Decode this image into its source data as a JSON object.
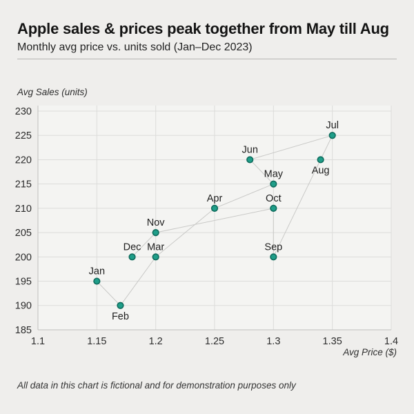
{
  "colors": {
    "page_bg": "#efeeec",
    "plot_bg": "#f4f4f2",
    "grid": "#dcdcda",
    "axis": "#bfbfbd",
    "marker_fill": "#1f9e89",
    "marker_stroke": "#0e6b5c",
    "connector": "#c9c9c7",
    "divider": "#b4b4b2",
    "title_text": "#141414",
    "body_text": "#2b2b2b"
  },
  "chart_data": {
    "type": "scatter",
    "title": "Apple sales & prices peak together from May till Aug",
    "subtitle": "Monthly avg price vs. units sold (Jan–Dec 2023)",
    "xlabel": "Avg Price ($)",
    "ylabel": "Avg Sales (units)",
    "footnote": "All data in this chart is fictional and for demonstration purposes only",
    "xlim": [
      1.1,
      1.4
    ],
    "ylim": [
      185,
      230
    ],
    "x_ticks": [
      1.1,
      1.15,
      1.2,
      1.25,
      1.3,
      1.35,
      1.4
    ],
    "y_ticks": [
      185,
      190,
      195,
      200,
      205,
      210,
      215,
      220,
      225,
      230
    ],
    "grid": true,
    "legend": false,
    "connect_points_in_order": true,
    "points": [
      {
        "label": "Jan",
        "x": 1.15,
        "y": 195,
        "label_pos": "above"
      },
      {
        "label": "Feb",
        "x": 1.17,
        "y": 190,
        "label_pos": "below"
      },
      {
        "label": "Mar",
        "x": 1.2,
        "y": 200,
        "label_pos": "above"
      },
      {
        "label": "Apr",
        "x": 1.25,
        "y": 210,
        "label_pos": "above"
      },
      {
        "label": "May",
        "x": 1.3,
        "y": 215,
        "label_pos": "above"
      },
      {
        "label": "Jun",
        "x": 1.28,
        "y": 220,
        "label_pos": "above"
      },
      {
        "label": "Jul",
        "x": 1.35,
        "y": 225,
        "label_pos": "above"
      },
      {
        "label": "Aug",
        "x": 1.34,
        "y": 220,
        "label_pos": "below"
      },
      {
        "label": "Sep",
        "x": 1.3,
        "y": 200,
        "label_pos": "above"
      },
      {
        "label": "Oct",
        "x": 1.3,
        "y": 210,
        "label_pos": "above"
      },
      {
        "label": "Nov",
        "x": 1.2,
        "y": 205,
        "label_pos": "above"
      },
      {
        "label": "Dec",
        "x": 1.18,
        "y": 200,
        "label_pos": "above"
      }
    ]
  }
}
